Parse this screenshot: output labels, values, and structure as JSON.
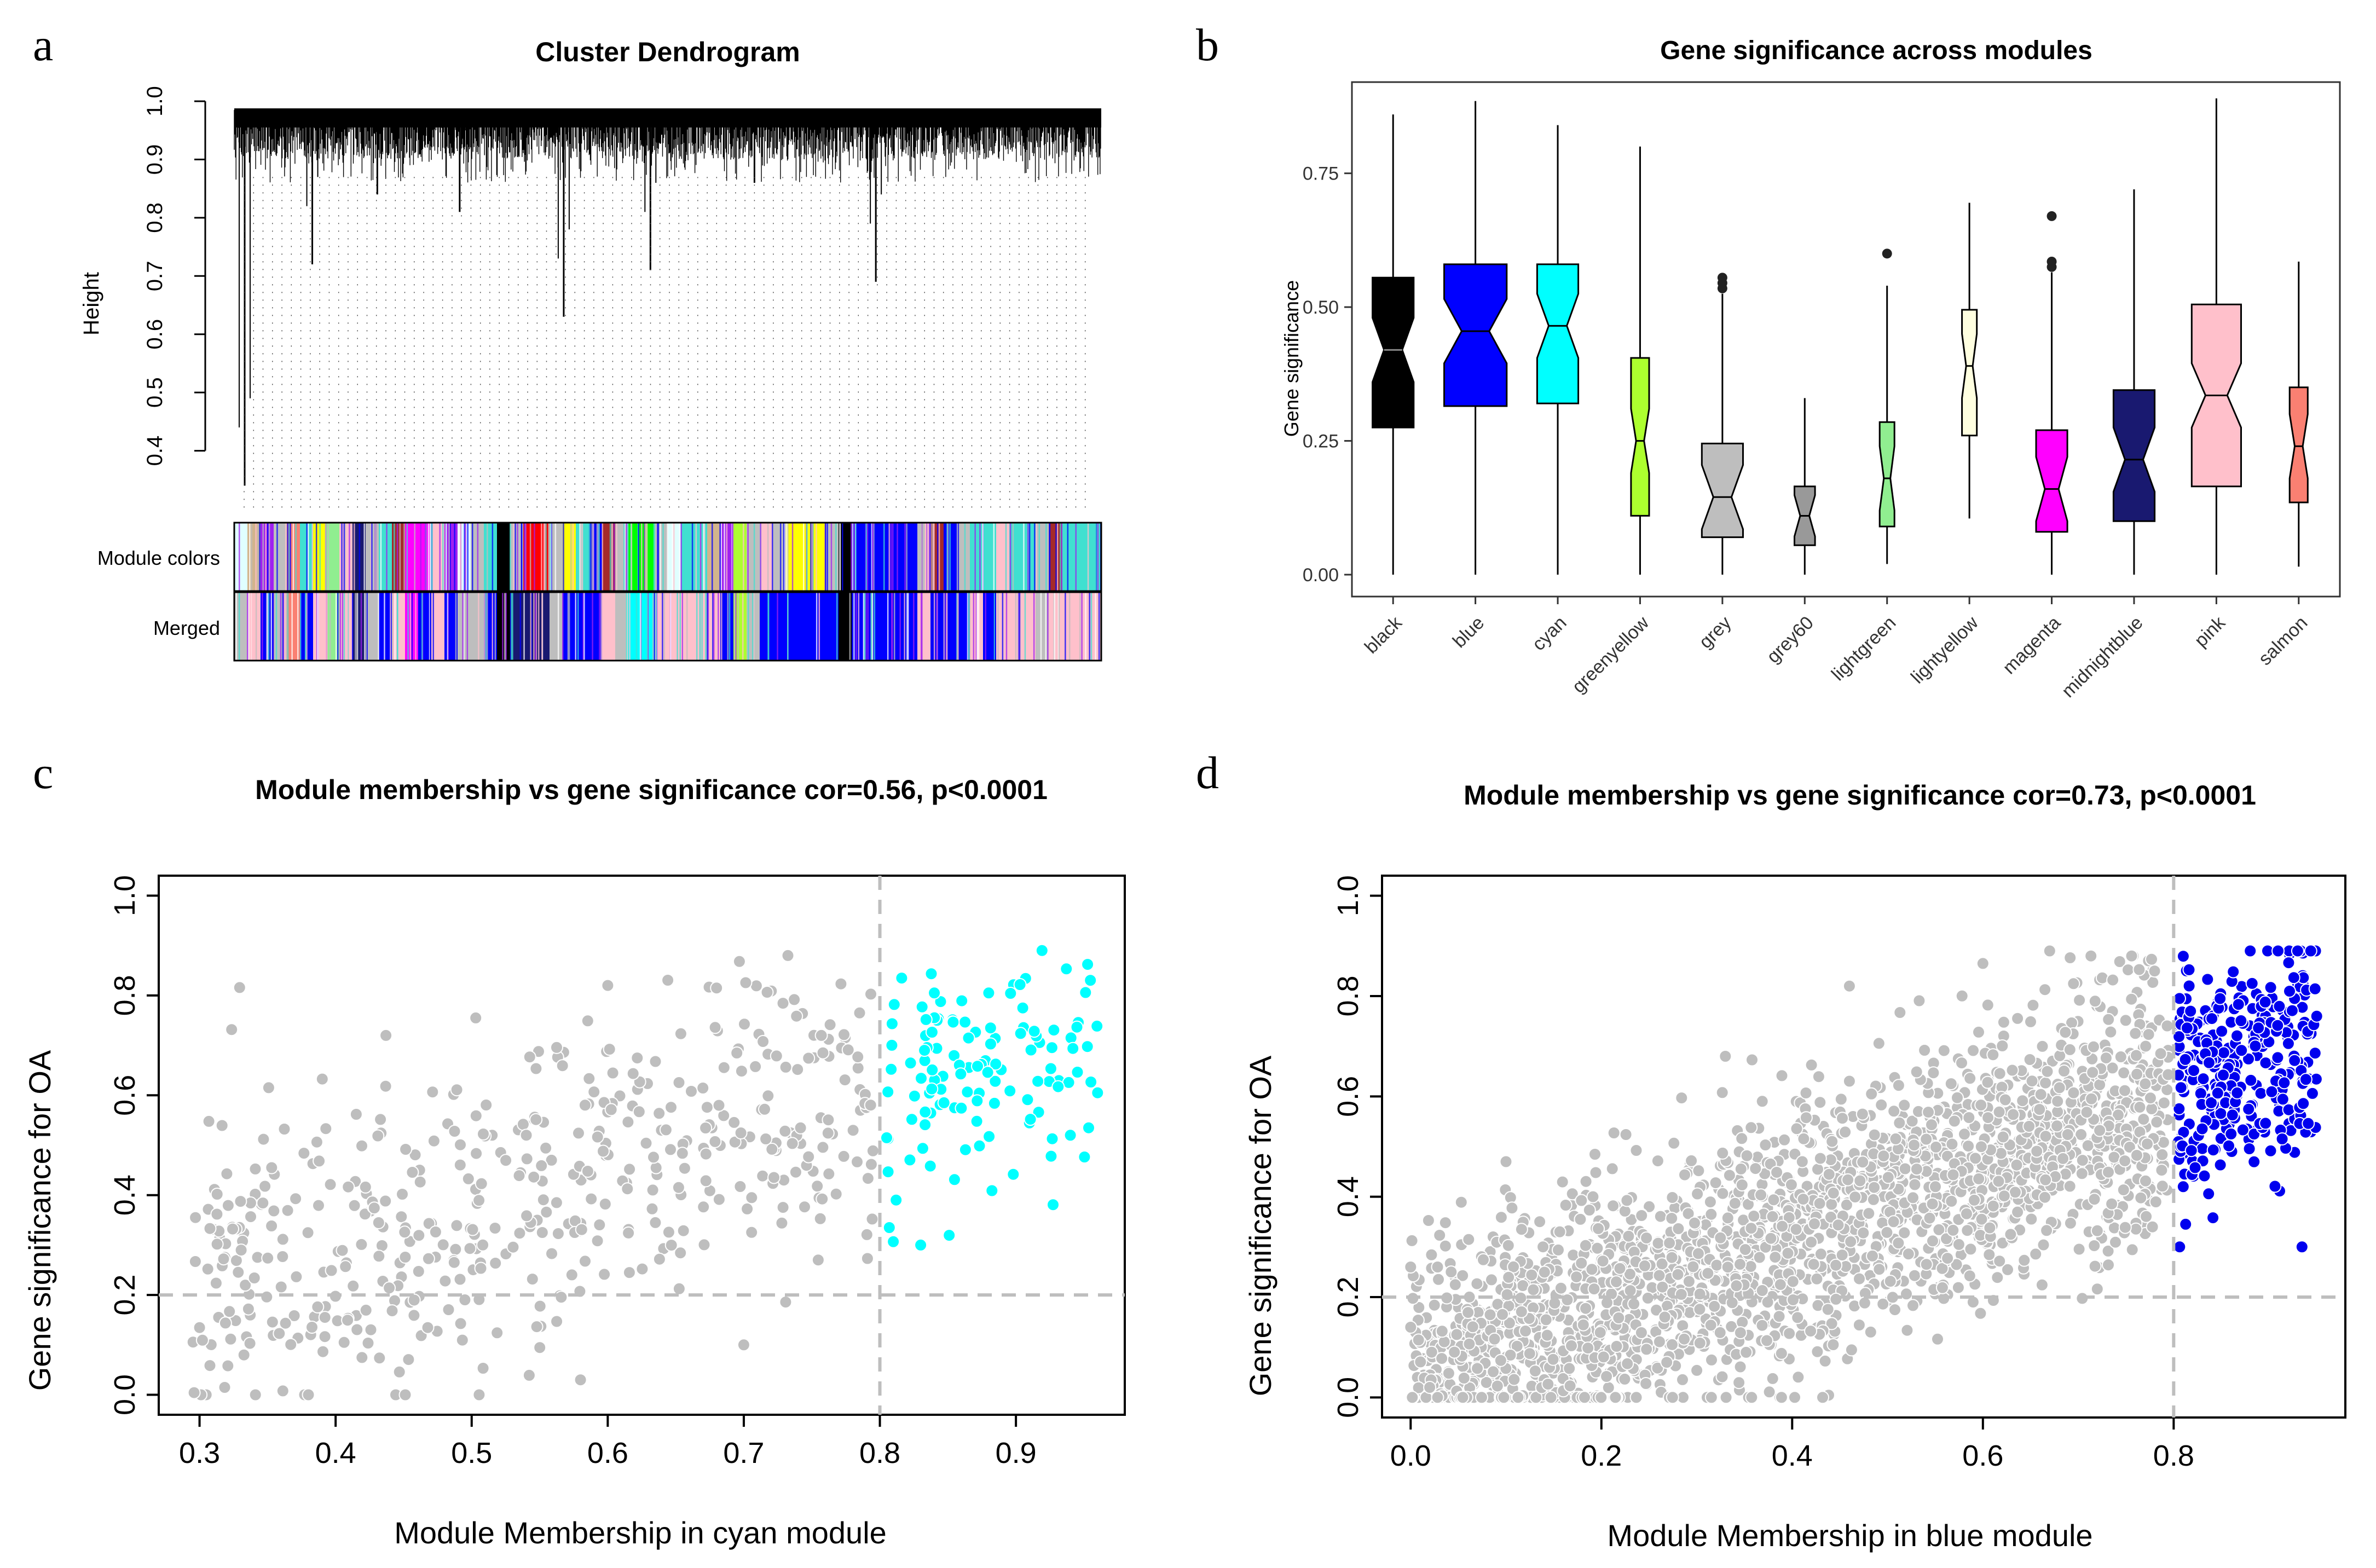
{
  "panels": {
    "a": {
      "letter": "a"
    },
    "b": {
      "letter": "b"
    },
    "c": {
      "letter": "c"
    },
    "d": {
      "letter": "d"
    }
  },
  "colors": {
    "black": "#000000",
    "blue": "#0000ff",
    "cyan": "#00ffff",
    "greenyellow": "#adff2f",
    "grey": "#bebebe",
    "grey60": "#999999",
    "lightgreen": "#90ee90",
    "lightyellow": "#ffffe0",
    "magenta": "#ff00ff",
    "midnightblue": "#191970",
    "pink": "#ffc0cb",
    "salmon": "#fa8072",
    "red": "#ff0000",
    "green": "#00ff00",
    "yellow": "#ffff00",
    "brown": "#a52a2a",
    "turquoise": "#40e0d0",
    "purple": "#a020f0",
    "tan": "#d2b48c",
    "lightcyan": "#e0ffff"
  },
  "chart_data": [
    {
      "id": "a",
      "type": "dendrogram",
      "title": "Cluster Dendrogram",
      "ylabel": "Height",
      "ylim": [
        0.3,
        1.0
      ],
      "yticks": [
        0.4,
        0.5,
        0.6,
        0.7,
        0.8,
        0.9,
        1.0
      ],
      "yticklabels": [
        "0.4",
        "0.5",
        "0.6",
        "0.7",
        "0.8",
        "0.9",
        "1.0"
      ],
      "color_rows": [
        "Module colors",
        "Merged"
      ],
      "deep_branches": [
        {
          "x": 0.012,
          "h": 0.34
        },
        {
          "x": 0.09,
          "h": 0.72
        },
        {
          "x": 0.38,
          "h": 0.63
        },
        {
          "x": 0.48,
          "h": 0.71
        },
        {
          "x": 0.74,
          "h": 0.69
        },
        {
          "x": 0.165,
          "h": 0.84
        },
        {
          "x": 0.26,
          "h": 0.81
        },
        {
          "x": 0.6,
          "h": 0.86
        }
      ],
      "module_colors": [
        "#e0ffff",
        "#d2b48c",
        "#a020f0",
        "#bebebe",
        "#fa8072",
        "#40e0d0",
        "#ffff00",
        "#90ee90",
        "#ffc0cb",
        "#191970",
        "#bebebe",
        "#40e0d0",
        "#a52a2a",
        "#ff00ff",
        "#ff00ff",
        "#ffc0cb",
        "#a020f0",
        "#e0ffff",
        "#bebebe",
        "#40e0d0",
        "#000000",
        "#bebebe",
        "#ff0000",
        "#ff0000",
        "#bebebe",
        "#ffff00",
        "#40e0d0",
        "#0000ff",
        "#a52a2a",
        "#bebebe",
        "#00ff00",
        "#00ff00",
        "#bebebe",
        "#e0ffff",
        "#40e0d0",
        "#40e0d0",
        "#d2b48c",
        "#a020f0",
        "#adff2f",
        "#bebebe",
        "#ffc0cb",
        "#bebebe",
        "#ffff00",
        "#ffff00",
        "#ffff00",
        "#bebebe",
        "#000000",
        "#0000ff",
        "#0000ff",
        "#0000ff",
        "#0000ff",
        "#0000ff",
        "#bebebe",
        "#a52a2a",
        "#0000ff",
        "#bebebe",
        "#40e0d0",
        "#40e0d0",
        "#ffc0cb",
        "#40e0d0",
        "#40e0d0",
        "#bebebe",
        "#a52a2a",
        "#40e0d0",
        "#40e0d0",
        "#40e0d0"
      ],
      "merged_colors": [
        "#bebebe",
        "#ffc0cb",
        "#0000ff",
        "#bebebe",
        "#fa8072",
        "#0000ff",
        "#ffc0cb",
        "#90ee90",
        "#ffc0cb",
        "#191970",
        "#bebebe",
        "#0000ff",
        "#ffc0cb",
        "#ff00ff",
        "#0000ff",
        "#ffc0cb",
        "#0000ff",
        "#bebebe",
        "#bebebe",
        "#0000ff",
        "#000000",
        "#191970",
        "#191970",
        "#191970",
        "#bebebe",
        "#0000ff",
        "#0000ff",
        "#0000ff",
        "#ffc0cb",
        "#bebebe",
        "#00ffff",
        "#00ffff",
        "#ffc0cb",
        "#ffc0cb",
        "#ffc0cb",
        "#ffc0cb",
        "#ffc0cb",
        "#0000ff",
        "#adff2f",
        "#bebebe",
        "#0000ff",
        "#0000ff",
        "#0000ff",
        "#0000ff",
        "#0000ff",
        "#0000ff",
        "#000000",
        "#0000ff",
        "#0000ff",
        "#0000ff",
        "#0000ff",
        "#0000ff",
        "#ffc0cb",
        "#0000ff",
        "#0000ff",
        "#0000ff",
        "#ffc0cb",
        "#0000ff",
        "#ffc0cb",
        "#ffc0cb",
        "#ffc0cb",
        "#bebebe",
        "#ffc0cb",
        "#ffc0cb",
        "#ffc0cb",
        "#ffc0cb"
      ]
    },
    {
      "id": "b",
      "type": "boxplot",
      "title": "Gene significance across modules",
      "ylabel": "Gene significance",
      "ylim": [
        0.0,
        0.9
      ],
      "yticks": [
        0.0,
        0.25,
        0.5,
        0.75
      ],
      "yticklabels": [
        "0.00",
        "0.25",
        "0.50",
        "0.75"
      ],
      "categories": [
        "black",
        "blue",
        "cyan",
        "greenyellow",
        "grey",
        "grey60",
        "lightgreen",
        "lightyellow",
        "magenta",
        "midnightblue",
        "pink",
        "salmon"
      ],
      "boxes": [
        {
          "min": 0.0,
          "q1": 0.275,
          "median": 0.42,
          "q3": 0.555,
          "max": 0.86,
          "outliers": []
        },
        {
          "min": 0.0,
          "q1": 0.315,
          "median": 0.455,
          "q3": 0.58,
          "max": 0.885,
          "outliers": []
        },
        {
          "min": 0.0,
          "q1": 0.32,
          "median": 0.465,
          "q3": 0.58,
          "max": 0.84,
          "outliers": []
        },
        {
          "min": 0.0,
          "q1": 0.11,
          "median": 0.25,
          "q3": 0.405,
          "max": 0.8,
          "outliers": []
        },
        {
          "min": 0.0,
          "q1": 0.07,
          "median": 0.145,
          "q3": 0.245,
          "max": 0.525,
          "outliers": [
            0.535,
            0.545,
            0.555
          ]
        },
        {
          "min": 0.0,
          "q1": 0.055,
          "median": 0.11,
          "q3": 0.165,
          "max": 0.33,
          "outliers": []
        },
        {
          "min": 0.02,
          "q1": 0.09,
          "median": 0.18,
          "q3": 0.285,
          "max": 0.54,
          "outliers": [
            0.6
          ]
        },
        {
          "min": 0.105,
          "q1": 0.26,
          "median": 0.39,
          "q3": 0.495,
          "max": 0.695,
          "outliers": []
        },
        {
          "min": 0.0,
          "q1": 0.08,
          "median": 0.16,
          "q3": 0.27,
          "max": 0.565,
          "outliers": [
            0.575,
            0.585,
            0.67
          ]
        },
        {
          "min": 0.0,
          "q1": 0.1,
          "median": 0.215,
          "q3": 0.345,
          "max": 0.72,
          "outliers": []
        },
        {
          "min": 0.0,
          "q1": 0.165,
          "median": 0.335,
          "q3": 0.505,
          "max": 0.89,
          "outliers": []
        },
        {
          "min": 0.015,
          "q1": 0.135,
          "median": 0.24,
          "q3": 0.35,
          "max": 0.585,
          "outliers": []
        }
      ]
    },
    {
      "id": "c",
      "type": "scatter",
      "title": "Module membership vs gene significance cor=0.56, p<0.0001",
      "xlabel": "Module Membership in cyan module",
      "ylabel": "Gene significance for OA",
      "xlim": [
        0.27,
        0.98
      ],
      "ylim": [
        -0.04,
        1.04
      ],
      "xticks": [
        0.3,
        0.4,
        0.5,
        0.6,
        0.7,
        0.8,
        0.9
      ],
      "xticklabels": [
        "0.3",
        "0.4",
        "0.5",
        "0.6",
        "0.7",
        "0.8",
        "0.9"
      ],
      "yticks": [
        0.0,
        0.2,
        0.4,
        0.6,
        0.8,
        1.0
      ],
      "yticklabels": [
        "0.0",
        "0.2",
        "0.4",
        "0.6",
        "0.8",
        "1.0"
      ],
      "threshold_x": 0.8,
      "threshold_y": 0.2,
      "n_points": 600,
      "n_highlight": 120,
      "highlight_color": "#00ffff",
      "base_color": "#bebebe",
      "seed": 11,
      "x_range": [
        0.295,
        0.96
      ],
      "slope": 0.75,
      "intercept": 0.0,
      "noise": 0.16,
      "example_points": [
        [
          0.297,
          0.355
        ],
        [
          0.353,
          0.455
        ],
        [
          0.38,
          0.0
        ],
        [
          0.437,
          0.72
        ],
        [
          0.503,
          0.755
        ],
        [
          0.6,
          0.82
        ],
        [
          0.68,
          0.815
        ],
        [
          0.7,
          0.1
        ],
        [
          0.58,
          0.03
        ],
        [
          0.84,
          0.805
        ],
        [
          0.88,
          0.805
        ],
        [
          0.905,
          0.775
        ],
        [
          0.96,
          0.605
        ],
        [
          0.83,
          0.3
        ],
        [
          0.94,
          0.52
        ]
      ]
    },
    {
      "id": "d",
      "type": "scatter",
      "title": "Module membership vs gene significance cor=0.73, p<0.0001",
      "xlabel": "Module Membership in blue module",
      "ylabel": "Gene significance for OA",
      "xlim": [
        -0.03,
        0.98
      ],
      "ylim": [
        -0.04,
        1.04
      ],
      "xticks": [
        0.0,
        0.2,
        0.4,
        0.6,
        0.8
      ],
      "xticklabels": [
        "0.0",
        "0.2",
        "0.4",
        "0.6",
        "0.8"
      ],
      "yticks": [
        0.0,
        0.2,
        0.4,
        0.6,
        0.8,
        1.0
      ],
      "yticklabels": [
        "0.0",
        "0.2",
        "0.4",
        "0.6",
        "0.8",
        "1.0"
      ],
      "threshold_x": 0.8,
      "threshold_y": 0.2,
      "n_points": 2600,
      "n_highlight": 330,
      "highlight_color": "#0000ee",
      "base_color": "#bebebe",
      "seed": 29,
      "x_range": [
        0.0,
        0.95
      ],
      "slope": 0.72,
      "intercept": 0.03,
      "noise": 0.13,
      "example_points": [
        [
          0.0,
          0.26
        ],
        [
          0.0,
          0.14
        ],
        [
          0.02,
          0.02
        ],
        [
          0.1,
          0.47
        ],
        [
          0.33,
          0.68
        ],
        [
          0.46,
          0.82
        ],
        [
          0.6,
          0.865
        ],
        [
          0.67,
          0.89
        ],
        [
          0.93,
          0.89
        ],
        [
          0.95,
          0.76
        ],
        [
          0.81,
          0.42
        ],
        [
          0.78,
          0.85
        ]
      ]
    }
  ]
}
